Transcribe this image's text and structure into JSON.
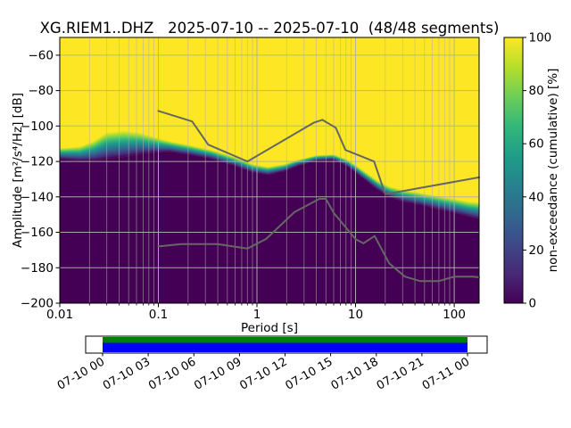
{
  "title": "XG.RIEM1..DHZ   2025-07-10 -- 2025-07-10  (48/48 segments)",
  "axes": {
    "x_label": "Period [s]",
    "y_label": "Amplitude [m²/s⁴/Hz] [dB]",
    "x_ticks": [
      {
        "label": "0.01",
        "value": 0.01
      },
      {
        "label": "0.1",
        "value": 0.1
      },
      {
        "label": "1",
        "value": 1
      },
      {
        "label": "10",
        "value": 10
      },
      {
        "label": "100",
        "value": 100
      }
    ],
    "y_ticks": [
      {
        "label": "−60",
        "value": -60
      },
      {
        "label": "−80",
        "value": -80
      },
      {
        "label": "−100",
        "value": -100
      },
      {
        "label": "−120",
        "value": -120
      },
      {
        "label": "−140",
        "value": -140
      },
      {
        "label": "−160",
        "value": -160
      },
      {
        "label": "−180",
        "value": -180
      },
      {
        "label": "−200",
        "value": -200
      }
    ]
  },
  "colorbar": {
    "label": "non-exceedance (cumulative) [%]",
    "ticks": [
      {
        "label": "0",
        "value": 0
      },
      {
        "label": "20",
        "value": 20
      },
      {
        "label": "40",
        "value": 40
      },
      {
        "label": "60",
        "value": 60
      },
      {
        "label": "80",
        "value": 80
      },
      {
        "label": "100",
        "value": 100
      }
    ]
  },
  "chart_data": {
    "type": "heatmap",
    "subtype": "ppsd-cumulative-distribution",
    "station_id": "XG.RIEM1..DHZ",
    "date_start": "2025-07-10",
    "date_end": "2025-07-10",
    "segments_used": 48,
    "segments_total": 48,
    "x_scale": "log",
    "xlim": [
      0.01,
      179
    ],
    "ylim": [
      -200,
      -50
    ],
    "value_range_percent": [
      0,
      100
    ],
    "envelope_note": "per period: lo = amplitude dB where cumulative non-exceedance leaves 0%, hi = dB where it reaches 100%",
    "envelope": [
      {
        "p": 0.01,
        "lo": -118.5,
        "hi": -112.5
      },
      {
        "p": 0.016,
        "lo": -119.5,
        "hi": -111.5
      },
      {
        "p": 0.022,
        "lo": -119.5,
        "hi": -108.5
      },
      {
        "p": 0.03,
        "lo": -118.5,
        "hi": -103.5
      },
      {
        "p": 0.045,
        "lo": -117.5,
        "hi": -102.5
      },
      {
        "p": 0.065,
        "lo": -116.0,
        "hi": -103.5
      },
      {
        "p": 0.09,
        "lo": -115.0,
        "hi": -106.0
      },
      {
        "p": 0.13,
        "lo": -114.5,
        "hi": -108.5
      },
      {
        "p": 0.2,
        "lo": -116.0,
        "hi": -110.5
      },
      {
        "p": 0.35,
        "lo": -118.5,
        "hi": -113.5
      },
      {
        "p": 0.6,
        "lo": -122.5,
        "hi": -117.5
      },
      {
        "p": 0.9,
        "lo": -126.0,
        "hi": -121.5
      },
      {
        "p": 1.3,
        "lo": -127.5,
        "hi": -123.0
      },
      {
        "p": 1.9,
        "lo": -125.5,
        "hi": -121.5
      },
      {
        "p": 2.6,
        "lo": -122.5,
        "hi": -119.0
      },
      {
        "p": 4.0,
        "lo": -119.5,
        "hi": -116.5
      },
      {
        "p": 6.0,
        "lo": -119.0,
        "hi": -116.0
      },
      {
        "p": 8.0,
        "lo": -122.0,
        "hi": -118.5
      },
      {
        "p": 10.0,
        "lo": -126.0,
        "hi": -122.0
      },
      {
        "p": 13.0,
        "lo": -131.0,
        "hi": -126.5
      },
      {
        "p": 17.0,
        "lo": -136.0,
        "hi": -131.0
      },
      {
        "p": 22.0,
        "lo": -140.0,
        "hi": -134.0
      },
      {
        "p": 30.0,
        "lo": -142.5,
        "hi": -136.0
      },
      {
        "p": 45.0,
        "lo": -144.5,
        "hi": -137.5
      },
      {
        "p": 70.0,
        "lo": -147.0,
        "hi": -139.5
      },
      {
        "p": 100.0,
        "lo": -149.0,
        "hi": -141.0
      },
      {
        "p": 140.0,
        "lo": -151.0,
        "hi": -142.5
      },
      {
        "p": 179.0,
        "lo": -152.5,
        "hi": -143.0
      }
    ],
    "noise_models": [
      {
        "name": "NHNM",
        "points": [
          [
            0.1,
            -91.5
          ],
          [
            0.22,
            -97.4
          ],
          [
            0.32,
            -110.5
          ],
          [
            0.8,
            -120.0
          ],
          [
            3.8,
            -98.0
          ],
          [
            4.6,
            -96.5
          ],
          [
            6.3,
            -101.0
          ],
          [
            7.9,
            -113.5
          ],
          [
            15.4,
            -120.0
          ],
          [
            20.0,
            -138.5
          ],
          [
            179.0,
            -129.0
          ]
        ]
      },
      {
        "name": "NLNM",
        "points": [
          [
            0.1,
            -168.0
          ],
          [
            0.17,
            -166.7
          ],
          [
            0.4,
            -166.7
          ],
          [
            0.8,
            -169.2
          ],
          [
            1.24,
            -163.7
          ],
          [
            2.4,
            -148.6
          ],
          [
            4.3,
            -141.1
          ],
          [
            5.0,
            -141.1
          ],
          [
            6.0,
            -149.0
          ],
          [
            10.0,
            -163.8
          ],
          [
            12.0,
            -166.2
          ],
          [
            15.6,
            -162.1
          ],
          [
            21.9,
            -177.5
          ],
          [
            31.6,
            -185.0
          ],
          [
            45.0,
            -187.5
          ],
          [
            70.0,
            -187.5
          ],
          [
            101.0,
            -185.0
          ],
          [
            154.0,
            -185.0
          ],
          [
            179.0,
            -185.4
          ]
        ]
      }
    ]
  },
  "viridis": [
    "#440154",
    "#482878",
    "#3e4989",
    "#31688e",
    "#26828e",
    "#1f9e89",
    "#35b779",
    "#6ece58",
    "#b5de2b",
    "#fde725"
  ],
  "colors": {
    "heat_high": "#fde725",
    "heat_low": "#440154",
    "noise_model": "#666666",
    "grid": "#b0b0b0",
    "frame": "#000000",
    "timeline_green": "#008000",
    "timeline_blue": "#0000ff"
  },
  "timeline": {
    "labels": [
      "07-10 00",
      "07-10 03",
      "07-10 06",
      "07-10 09",
      "07-10 12",
      "07-10 15",
      "07-10 18",
      "07-10 21",
      "07-11 00"
    ]
  }
}
